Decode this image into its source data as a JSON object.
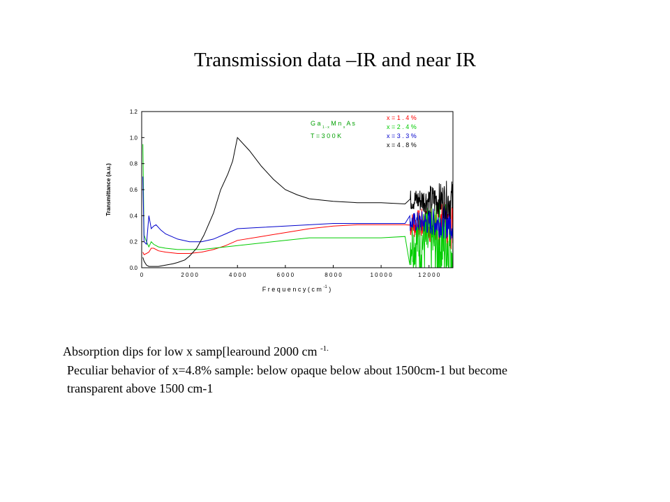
{
  "slide": {
    "title": "Transmission data –IR and near IR",
    "caption1_text": "Absorption dips for low x samp[learound 2000 cm ",
    "caption1_sup": "-1.",
    "caption2": "Peculiar behavior of x=4.8% sample: below  opaque below about 1500cm-1 but become",
    "caption3": "transparent above 1500 cm-1"
  },
  "chart_data": {
    "type": "line",
    "xlabel": "F r e q u e n c y  ( c m",
    "xlabel_sup": "-1",
    "xlabel_end": ")",
    "ylabel": "Transmittance (a.u.)",
    "xlim": [
      0,
      13000
    ],
    "ylim": [
      0,
      1.2
    ],
    "x_ticks": [
      0,
      2000,
      4000,
      6000,
      8000,
      10000,
      12000
    ],
    "x_tick_labels": [
      "0",
      "2 0 0 0",
      "4 0 0 0",
      "6 0 0 0",
      "8 0 0 0",
      "1 0 0 0 0",
      "1 2 0 0 0"
    ],
    "y_ticks": [
      0,
      0.2,
      0.4,
      0.6,
      0.8,
      1.0,
      1.2
    ],
    "y_tick_labels": [
      "0.0",
      "0.2",
      "0.4",
      "0.6",
      "0.8",
      "1.0",
      "1.2"
    ],
    "annotation": {
      "compound_parts": [
        "G a",
        "1 - x",
        "M n",
        "x",
        "A s"
      ],
      "temperature": "T = 3 0 0  K",
      "color": "#00a000"
    },
    "legend": {
      "position": "top-right",
      "entries": [
        {
          "label": "x = 1 . 4 %",
          "color": "#ff0000"
        },
        {
          "label": "x = 2 . 4 %",
          "color": "#00cc00"
        },
        {
          "label": "x = 3 . 3 %",
          "color": "#0000cc"
        },
        {
          "label": "x = 4 . 8 %",
          "color": "#000000"
        }
      ]
    },
    "series": [
      {
        "name": "x = 1 . 4 %",
        "color": "#ff0000",
        "x": [
          50,
          100,
          200,
          300,
          400,
          500,
          700,
          1000,
          1500,
          2000,
          2500,
          3000,
          3500,
          4000,
          5000,
          6000,
          7000,
          8000,
          9000,
          10000,
          11000
        ],
        "y": [
          0.12,
          0.1,
          0.11,
          0.12,
          0.15,
          0.15,
          0.13,
          0.12,
          0.11,
          0.11,
          0.12,
          0.14,
          0.17,
          0.21,
          0.24,
          0.27,
          0.3,
          0.32,
          0.33,
          0.33,
          0.33
        ],
        "noise_start": 11200,
        "noise_center": 0.33,
        "noise_amp": 0.1
      },
      {
        "name": "x = 2 . 4 %",
        "color": "#00cc00",
        "x": [
          50,
          100,
          200,
          300,
          400,
          500,
          700,
          1000,
          1500,
          2000,
          2500,
          3000,
          4000,
          5000,
          6000,
          7000,
          8000,
          9000,
          10000,
          11000
        ],
        "y": [
          0.95,
          0.25,
          0.2,
          0.16,
          0.2,
          0.18,
          0.16,
          0.15,
          0.14,
          0.14,
          0.14,
          0.15,
          0.17,
          0.19,
          0.21,
          0.23,
          0.23,
          0.23,
          0.23,
          0.24
        ],
        "noise_start": 11200,
        "noise_center": 0.2,
        "noise_amp": 0.2
      },
      {
        "name": "x = 3 . 3 %",
        "color": "#0000cc",
        "x": [
          50,
          100,
          200,
          300,
          400,
          500,
          600,
          800,
          1000,
          1500,
          2000,
          2500,
          3000,
          3500,
          4000,
          5000,
          6000,
          7000,
          8000,
          9000,
          10000,
          11000
        ],
        "y": [
          0.7,
          0.2,
          0.18,
          0.4,
          0.3,
          0.32,
          0.33,
          0.29,
          0.26,
          0.22,
          0.2,
          0.2,
          0.22,
          0.26,
          0.3,
          0.31,
          0.32,
          0.33,
          0.34,
          0.34,
          0.34,
          0.34
        ],
        "noise_start": 11200,
        "noise_center": 0.35,
        "noise_amp": 0.07
      },
      {
        "name": "x = 4 . 8 %",
        "color": "#000000",
        "x": [
          50,
          100,
          200,
          300,
          400,
          500,
          700,
          1000,
          1300,
          1500,
          1800,
          2000,
          2300,
          2600,
          3000,
          3300,
          3600,
          3800,
          4000,
          4500,
          5000,
          5500,
          6000,
          6500,
          7000,
          8000,
          9000,
          10000,
          11000
        ],
        "y": [
          0.08,
          0.05,
          0.02,
          0.01,
          0.01,
          0.01,
          0.01,
          0.02,
          0.03,
          0.04,
          0.06,
          0.09,
          0.15,
          0.25,
          0.42,
          0.6,
          0.72,
          0.82,
          1.0,
          0.9,
          0.78,
          0.68,
          0.6,
          0.56,
          0.53,
          0.51,
          0.5,
          0.5,
          0.49
        ],
        "noise_start": 11200,
        "noise_center": 0.52,
        "noise_amp": 0.08
      }
    ]
  }
}
